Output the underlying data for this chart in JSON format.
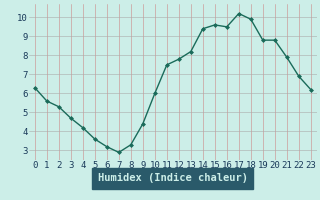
{
  "x": [
    0,
    1,
    2,
    3,
    4,
    5,
    6,
    7,
    8,
    9,
    10,
    11,
    12,
    13,
    14,
    15,
    16,
    17,
    18,
    19,
    20,
    21,
    22,
    23
  ],
  "y": [
    6.3,
    5.6,
    5.3,
    4.7,
    4.2,
    3.6,
    3.2,
    2.9,
    3.3,
    4.4,
    6.0,
    7.5,
    7.8,
    8.2,
    9.4,
    9.6,
    9.5,
    10.2,
    9.9,
    8.8,
    8.8,
    7.9,
    6.9,
    6.2
  ],
  "xlabel": "Humidex (Indice chaleur)",
  "xlim": [
    -0.5,
    23.5
  ],
  "ylim": [
    2.5,
    10.7
  ],
  "yticks": [
    3,
    4,
    5,
    6,
    7,
    8,
    9,
    10
  ],
  "xticks": [
    0,
    1,
    2,
    3,
    4,
    5,
    6,
    7,
    8,
    9,
    10,
    11,
    12,
    13,
    14,
    15,
    16,
    17,
    18,
    19,
    20,
    21,
    22,
    23
  ],
  "line_color": "#1a6b5a",
  "marker_color": "#1a6b5a",
  "plot_bg_color": "#cceee8",
  "fig_bg_color": "#cceee8",
  "axis_bottom_bg": "#2a5a6a",
  "grid_color": "#aaaaaa",
  "grid_red_color": "#cc8888",
  "tick_color": "#1a3a5a",
  "xlabel_color": "#cceee8",
  "tick_fontsize": 6.5,
  "label_fontsize": 7.5
}
